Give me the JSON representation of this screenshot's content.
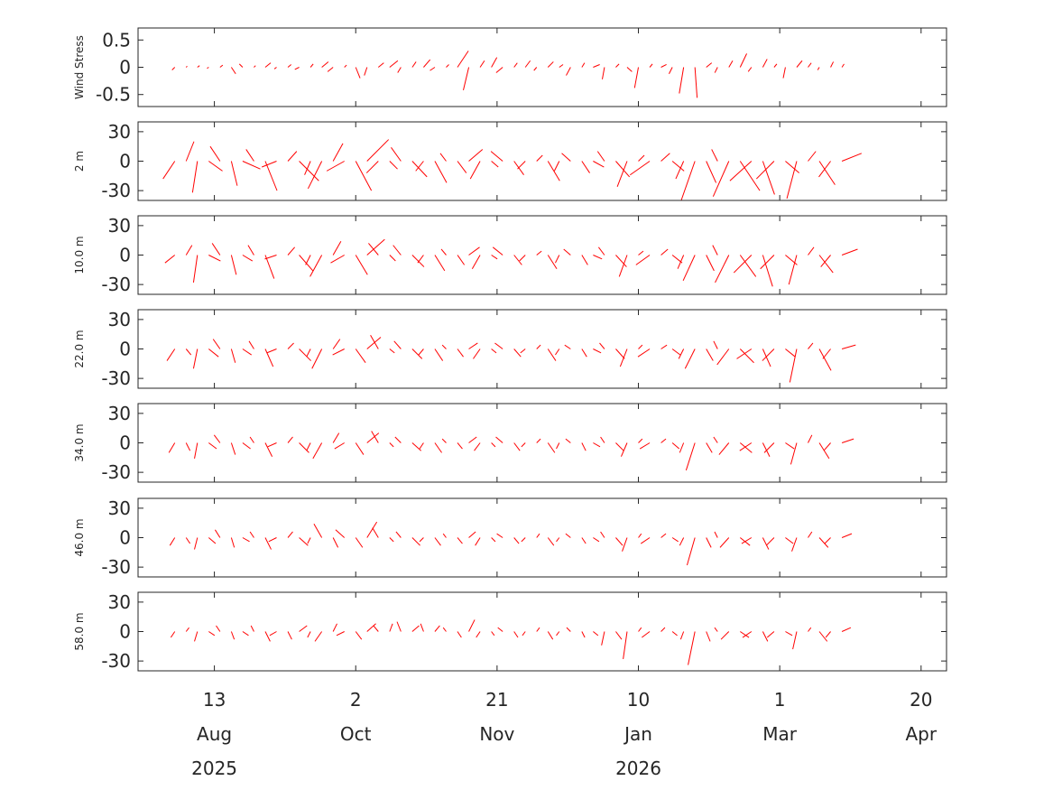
{
  "chart_data": {
    "type": "stick",
    "xlabel_units": "days since 2025-07-17",
    "xlim": [
      0,
      286
    ],
    "x_ticks": [
      {
        "day": 27,
        "label": "13",
        "month": "Aug",
        "year": "2025"
      },
      {
        "day": 77,
        "label": "2",
        "month": "Oct",
        "year": ""
      },
      {
        "day": 127,
        "label": "21",
        "month": "Nov",
        "year": ""
      },
      {
        "day": 177,
        "label": "10",
        "month": "Jan",
        "year": "2026"
      },
      {
        "day": 227,
        "label": "1",
        "month": "Mar",
        "year": ""
      },
      {
        "day": 277,
        "label": "20",
        "month": "Apr",
        "year": ""
      }
    ],
    "sample_start_day": 13,
    "sample_interval_days": 4,
    "stick_color": "#ff0000",
    "panels": [
      {
        "ylabel": "Wind Stress",
        "ylim": [
          -0.72,
          0.72
        ],
        "yticks": [
          0.5,
          0,
          -0.5
        ],
        "ytick_labels": [
          "0.5",
          "0",
          "-0.5"
        ],
        "u": [
          -0.05,
          0.02,
          0.04,
          -0.03,
          0.05,
          0.08,
          -0.06,
          0.03,
          0.1,
          -0.04,
          0.06,
          -0.08,
          0.05,
          0.12,
          -0.1,
          0.04,
          0.08,
          -0.05,
          0.1,
          0.15,
          -0.06,
          0.07,
          0.12,
          -0.09,
          0.05,
          0.2,
          -0.1,
          0.08,
          0.1,
          -0.12,
          0.06,
          0.09,
          -0.05,
          0.1,
          0.07,
          -0.08,
          0.05,
          0.12,
          -0.04,
          0.06,
          0.09,
          -0.07,
          0.05,
          0.1,
          -0.06,
          -0.08,
          0.04,
          0.1,
          -0.05,
          0.07,
          0.12,
          -0.06,
          0.08,
          0.05,
          -0.04,
          0.1,
          0.06,
          -0.03,
          0.05,
          0.04
        ],
        "v": [
          -0.05,
          0.02,
          0.03,
          -0.02,
          0.04,
          -0.12,
          0.06,
          0.03,
          0.08,
          -0.03,
          0.05,
          -0.04,
          0.06,
          0.1,
          -0.08,
          0.04,
          -0.2,
          -0.15,
          0.08,
          0.12,
          -0.1,
          0.1,
          0.14,
          -0.06,
          0.05,
          0.3,
          -0.42,
          0.12,
          0.18,
          -0.1,
          0.08,
          0.12,
          -0.06,
          0.1,
          0.05,
          -0.15,
          0.08,
          0.05,
          -0.22,
          0.06,
          -0.08,
          -0.38,
          0.06,
          0.05,
          -0.12,
          -0.48,
          -0.56,
          0.08,
          -0.1,
          0.12,
          0.25,
          -0.08,
          0.15,
          0.06,
          -0.2,
          0.12,
          0.08,
          -0.05,
          0.1,
          0.06
        ]
      },
      {
        "ylabel": "2 m",
        "ylim": [
          -40,
          40
        ],
        "yticks": [
          30,
          0,
          -30
        ],
        "ytick_labels": [
          "30",
          "0",
          "-30"
        ],
        "u": [
          -12,
          8,
          -5,
          14,
          -10,
          6,
          18,
          -8,
          12,
          -15,
          9,
          20,
          -6,
          -14,
          10,
          -18,
          16,
          22,
          -12,
          8,
          -10,
          15,
          -8,
          12,
          -6,
          9,
          14,
          -10,
          7,
          -12,
          10,
          -8,
          6,
          12,
          -5,
          -9,
          8,
          11,
          -7,
          14,
          -10,
          6,
          -20,
          9,
          12,
          -8,
          -14,
          10,
          -6,
          -16,
          20,
          -22,
          12,
          -18,
          14,
          -10,
          8,
          16,
          -12,
          20
        ],
        "v": [
          -18,
          20,
          -32,
          -10,
          15,
          -25,
          -8,
          12,
          -30,
          -6,
          10,
          -20,
          -14,
          -28,
          18,
          -10,
          -30,
          22,
          -12,
          -8,
          14,
          -16,
          -10,
          -22,
          8,
          -12,
          12,
          -18,
          -6,
          10,
          -14,
          -8,
          6,
          -20,
          -10,
          8,
          -12,
          -6,
          10,
          -16,
          -26,
          6,
          -14,
          8,
          -10,
          -18,
          -40,
          -22,
          12,
          -36,
          -30,
          -20,
          -34,
          -18,
          -12,
          -38,
          10,
          -24,
          -16,
          8
        ]
      },
      {
        "ylabel": "10.0 m",
        "ylim": [
          -40,
          40
        ],
        "yticks": [
          30,
          0,
          -30
        ],
        "ytick_labels": [
          "30",
          "0",
          "-30"
        ],
        "u": [
          -10,
          6,
          -4,
          12,
          -8,
          5,
          10,
          -6,
          9,
          -12,
          7,
          14,
          -5,
          -12,
          8,
          -14,
          12,
          18,
          -10,
          6,
          -8,
          12,
          -6,
          10,
          -5,
          7,
          11,
          -8,
          6,
          -10,
          8,
          -6,
          5,
          9,
          -4,
          -7,
          6,
          9,
          -6,
          11,
          -8,
          5,
          -14,
          7,
          10,
          -6,
          -12,
          8,
          -5,
          -14,
          16,
          -18,
          10,
          -14,
          12,
          -8,
          6,
          14,
          -10,
          16
        ],
        "v": [
          -8,
          10,
          -28,
          -6,
          12,
          -20,
          -6,
          10,
          -24,
          -4,
          8,
          -16,
          -10,
          -22,
          14,
          -8,
          -20,
          16,
          12,
          -6,
          10,
          -12,
          -8,
          -16,
          6,
          -10,
          8,
          -14,
          -4,
          8,
          -10,
          -6,
          4,
          -14,
          -8,
          6,
          -10,
          -4,
          8,
          -12,
          -22,
          4,
          -10,
          6,
          -8,
          -14,
          -26,
          -16,
          10,
          -28,
          -22,
          -18,
          -32,
          -14,
          -10,
          -30,
          8,
          -18,
          -12,
          6
        ]
      },
      {
        "ylabel": "22.0 m",
        "ylim": [
          -40,
          40
        ],
        "yticks": [
          30,
          0,
          -30
        ],
        "ytick_labels": [
          "30",
          "0",
          "-30"
        ],
        "u": [
          -8,
          5,
          -4,
          10,
          -7,
          4,
          9,
          -5,
          8,
          -10,
          6,
          12,
          -4,
          -10,
          7,
          -12,
          10,
          14,
          -8,
          5,
          -7,
          10,
          -5,
          8,
          -4,
          6,
          9,
          -7,
          5,
          -8,
          7,
          -5,
          4,
          8,
          -4,
          -6,
          5,
          8,
          -5,
          9,
          -7,
          4,
          -12,
          6,
          8,
          -5,
          -10,
          7,
          -4,
          -12,
          14,
          -15,
          8,
          -12,
          10,
          -7,
          5,
          12,
          -8,
          14
        ],
        "v": [
          -12,
          -6,
          -20,
          -8,
          10,
          -14,
          -6,
          8,
          -18,
          -4,
          6,
          -12,
          -8,
          -20,
          10,
          -6,
          -14,
          12,
          14,
          -4,
          8,
          -10,
          -6,
          -12,
          4,
          -8,
          6,
          -10,
          -4,
          6,
          -8,
          -4,
          4,
          -12,
          -6,
          4,
          -8,
          -4,
          6,
          -10,
          -18,
          4,
          -8,
          4,
          -6,
          -10,
          -20,
          -12,
          8,
          -16,
          -14,
          -10,
          -18,
          -12,
          -8,
          -34,
          6,
          -22,
          -10,
          4
        ]
      },
      {
        "ylabel": "34.0 m",
        "ylim": [
          -40,
          40
        ],
        "yticks": [
          30,
          0,
          -30
        ],
        "ytick_labels": [
          "30",
          "0",
          "-30"
        ],
        "u": [
          -6,
          4,
          -3,
          8,
          -6,
          4,
          8,
          -4,
          7,
          -9,
          5,
          10,
          -4,
          -9,
          6,
          -10,
          8,
          12,
          -7,
          4,
          -6,
          9,
          -4,
          7,
          -4,
          5,
          8,
          -6,
          4,
          -7,
          6,
          -4,
          4,
          7,
          -3,
          -5,
          4,
          7,
          -4,
          8,
          -6,
          4,
          -10,
          5,
          7,
          -4,
          -9,
          6,
          -4,
          -10,
          12,
          -12,
          7,
          -10,
          9,
          -6,
          4,
          10,
          -7,
          12
        ],
        "v": [
          -10,
          -8,
          -16,
          -6,
          8,
          -12,
          -6,
          6,
          -14,
          -4,
          6,
          -10,
          -8,
          -16,
          10,
          -6,
          -12,
          10,
          12,
          -4,
          6,
          -8,
          -6,
          -10,
          4,
          -6,
          6,
          -8,
          -4,
          6,
          -8,
          -4,
          4,
          -10,
          -6,
          4,
          -8,
          -4,
          6,
          -8,
          -14,
          4,
          -6,
          4,
          -6,
          -10,
          -28,
          -10,
          6,
          -12,
          -10,
          -8,
          -14,
          -10,
          -6,
          -22,
          8,
          -16,
          -8,
          4
        ]
      },
      {
        "ylabel": "46.0 m",
        "ylim": [
          -40,
          40
        ],
        "yticks": [
          30,
          0,
          -30
        ],
        "ytick_labels": [
          "30",
          "0",
          "-30"
        ],
        "u": [
          -5,
          4,
          -3,
          7,
          -5,
          3,
          7,
          -4,
          6,
          -8,
          5,
          9,
          -3,
          -8,
          5,
          -9,
          7,
          10,
          -6,
          4,
          -5,
          8,
          -4,
          6,
          -3,
          5,
          7,
          -5,
          4,
          -6,
          5,
          -4,
          3,
          6,
          -3,
          -5,
          4,
          6,
          -4,
          7,
          -5,
          3,
          -9,
          5,
          6,
          -4,
          -8,
          5,
          -3,
          -9,
          10,
          -10,
          6,
          -8,
          8,
          -5,
          4,
          9,
          -6,
          10
        ],
        "v": [
          -8,
          -6,
          -12,
          -6,
          8,
          -10,
          -4,
          6,
          -12,
          -4,
          6,
          -8,
          -6,
          14,
          -10,
          8,
          -10,
          16,
          10,
          -4,
          6,
          -8,
          -4,
          -8,
          4,
          -6,
          6,
          -8,
          -4,
          4,
          -6,
          -4,
          4,
          -8,
          -4,
          4,
          -6,
          -4,
          6,
          -8,
          -14,
          4,
          -6,
          4,
          -4,
          -8,
          -28,
          -10,
          6,
          -10,
          -8,
          -6,
          -12,
          -8,
          -6,
          -14,
          6,
          -10,
          -6,
          4
        ]
      },
      {
        "ylabel": "58.0 m",
        "ylim": [
          -40,
          40
        ],
        "yticks": [
          30,
          0,
          -30
        ],
        "ytick_labels": [
          "30",
          "0",
          "-30"
        ],
        "u": [
          -4,
          3,
          -3,
          6,
          -4,
          3,
          6,
          -3,
          5,
          -7,
          4,
          8,
          -3,
          -7,
          4,
          -8,
          6,
          9,
          -5,
          3,
          -4,
          7,
          -3,
          5,
          -3,
          4,
          6,
          -4,
          3,
          -5,
          4,
          -3,
          3,
          5,
          -3,
          -4,
          3,
          5,
          -3,
          6,
          -4,
          3,
          -8,
          4,
          5,
          -3,
          -7,
          4,
          -3,
          -8,
          9,
          -9,
          5,
          -7,
          7,
          -4,
          3,
          8,
          -5,
          9
        ],
        "v": [
          -6,
          4,
          -10,
          -4,
          6,
          -8,
          -4,
          6,
          -10,
          -4,
          -8,
          6,
          -6,
          -10,
          8,
          -4,
          -8,
          8,
          6,
          8,
          10,
          6,
          8,
          6,
          4,
          -6,
          12,
          -6,
          -4,
          4,
          -6,
          -4,
          4,
          -8,
          -4,
          4,
          -6,
          -4,
          -14,
          -8,
          -28,
          4,
          -6,
          4,
          -4,
          -8,
          -34,
          -10,
          4,
          -8,
          -6,
          -6,
          -10,
          -6,
          -4,
          -18,
          4,
          -10,
          -6,
          4
        ]
      }
    ]
  }
}
